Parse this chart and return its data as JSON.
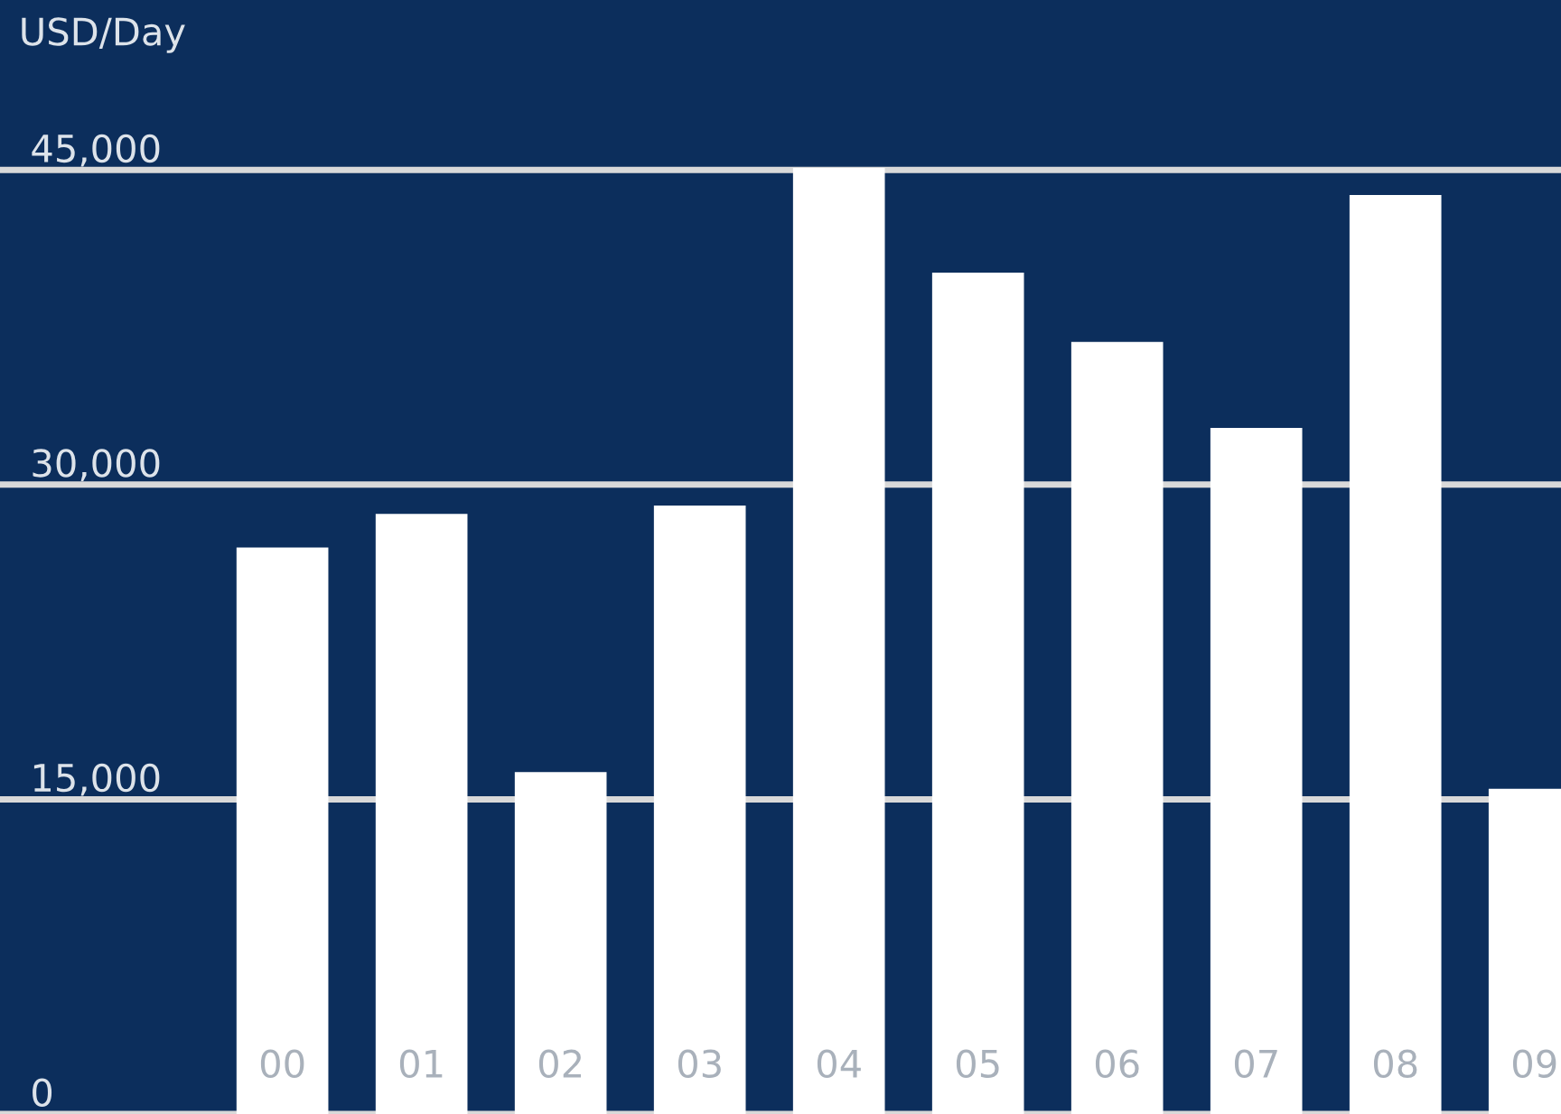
{
  "chart_data": {
    "type": "bar",
    "ylabel": "USD/Day",
    "categories": [
      "00",
      "01",
      "02",
      "03",
      "04",
      "05",
      "06",
      "07",
      "08",
      "09"
    ],
    "values": [
      27000,
      28600,
      16300,
      29000,
      45100,
      40100,
      36800,
      32700,
      43800,
      15500
    ],
    "color": "#ffffff",
    "ylim": [
      0,
      53100
    ],
    "yticks": [
      {
        "value": 0,
        "label": "0"
      },
      {
        "value": 15000,
        "label": "15,000"
      },
      {
        "value": 30000,
        "label": "30,000"
      },
      {
        "value": 45000,
        "label": "45,000"
      }
    ],
    "grid": "y"
  }
}
